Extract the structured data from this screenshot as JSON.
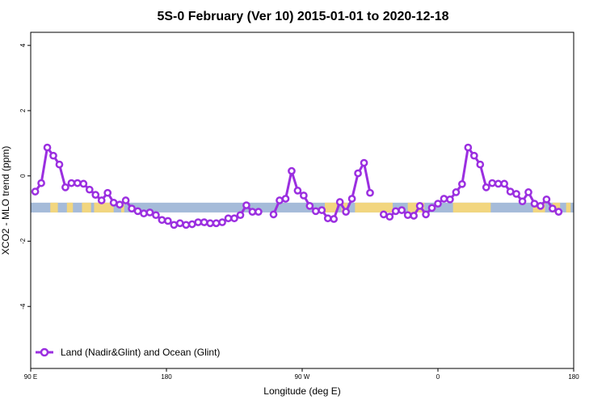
{
  "chart_data": {
    "type": "line",
    "title": "5S-0 February (Ver 10)   2015-01-01 to 2020-12-18",
    "xlabel": "Longitude (deg E)",
    "ylabel": "XCO2 - MLO trend (ppm)",
    "xlim": [
      90,
      450
    ],
    "ylim": [
      -5.9,
      4.4
    ],
    "x_ticks": [
      {
        "value": 90,
        "label": "90 E"
      },
      {
        "value": 180,
        "label": "180"
      },
      {
        "value": 270,
        "label": "90 W"
      },
      {
        "value": 360,
        "label": "0"
      },
      {
        "value": 450,
        "label": "180"
      }
    ],
    "y_ticks": [
      {
        "value": 4,
        "label": "4"
      },
      {
        "value": 2,
        "label": "2"
      },
      {
        "value": 0,
        "label": "0"
      },
      {
        "value": -2,
        "label": "-2"
      },
      {
        "value": -4,
        "label": "-4"
      }
    ],
    "grid": false,
    "legend": {
      "position": "bottom-left",
      "entries": [
        "Land (Nadir&Glint) and Ocean (Glint)"
      ]
    },
    "land_ocean_band": {
      "y_range": [
        -1.12,
        -0.82
      ],
      "ocean_color": "#a5bbd9",
      "land_color": "#f5d77a",
      "land_segments": [
        [
          103,
          108
        ],
        [
          114,
          118
        ],
        [
          124,
          130
        ],
        [
          132,
          145
        ],
        [
          150,
          152
        ],
        [
          285,
          293
        ],
        [
          296,
          300
        ],
        [
          305,
          330
        ],
        [
          340,
          351
        ],
        [
          370,
          395
        ],
        [
          423,
          431
        ],
        [
          436,
          441
        ],
        [
          445,
          448
        ]
      ]
    },
    "series": [
      {
        "name": "Land (Nadir&Glint) and Ocean (Glint)",
        "color": "#9b2fe0",
        "segments": [
          [
            [
              93,
              -0.48
            ],
            [
              97,
              -0.22
            ],
            [
              101,
              0.87
            ],
            [
              105,
              0.62
            ],
            [
              109,
              0.35
            ],
            [
              113,
              -0.35
            ],
            [
              117,
              -0.22
            ],
            [
              121,
              -0.22
            ],
            [
              125,
              -0.24
            ],
            [
              129,
              -0.42
            ],
            [
              133,
              -0.58
            ],
            [
              137,
              -0.75
            ],
            [
              141,
              -0.52
            ],
            [
              145,
              -0.82
            ],
            [
              149,
              -0.88
            ],
            [
              153,
              -0.75
            ],
            [
              157,
              -1.0
            ],
            [
              161,
              -1.08
            ],
            [
              165,
              -1.15
            ],
            [
              169,
              -1.12
            ],
            [
              173,
              -1.2
            ],
            [
              177,
              -1.35
            ],
            [
              181,
              -1.38
            ],
            [
              185,
              -1.5
            ],
            [
              189,
              -1.45
            ],
            [
              193,
              -1.5
            ],
            [
              197,
              -1.48
            ],
            [
              201,
              -1.42
            ],
            [
              205,
              -1.42
            ],
            [
              209,
              -1.45
            ],
            [
              213,
              -1.45
            ],
            [
              217,
              -1.42
            ],
            [
              221,
              -1.3
            ],
            [
              225,
              -1.3
            ],
            [
              229,
              -1.2
            ],
            [
              233,
              -0.9
            ],
            [
              237,
              -1.1
            ],
            [
              241,
              -1.1
            ]
          ],
          [
            [
              251,
              -1.18
            ],
            [
              255,
              -0.75
            ],
            [
              259,
              -0.7
            ],
            [
              263,
              0.15
            ],
            [
              267,
              -0.45
            ],
            [
              271,
              -0.6
            ],
            [
              275,
              -0.92
            ],
            [
              279,
              -1.08
            ],
            [
              283,
              -1.05
            ],
            [
              287,
              -1.3
            ],
            [
              291,
              -1.32
            ],
            [
              295,
              -0.8
            ],
            [
              299,
              -1.1
            ],
            [
              303,
              -0.7
            ],
            [
              307,
              0.08
            ],
            [
              311,
              0.4
            ],
            [
              315,
              -0.52
            ]
          ],
          [
            [
              324,
              -1.18
            ],
            [
              328,
              -1.25
            ],
            [
              332,
              -1.08
            ],
            [
              336,
              -1.05
            ],
            [
              340,
              -1.2
            ],
            [
              344,
              -1.22
            ],
            [
              348,
              -0.92
            ],
            [
              352,
              -1.18
            ],
            [
              356,
              -0.98
            ],
            [
              360,
              -0.85
            ],
            [
              364,
              -0.7
            ],
            [
              368,
              -0.72
            ],
            [
              372,
              -0.5
            ],
            [
              376,
              -0.25
            ],
            [
              380,
              0.87
            ],
            [
              384,
              0.62
            ],
            [
              388,
              0.35
            ],
            [
              392,
              -0.35
            ],
            [
              396,
              -0.22
            ],
            [
              400,
              -0.24
            ],
            [
              404,
              -0.24
            ],
            [
              408,
              -0.48
            ],
            [
              412,
              -0.55
            ],
            [
              416,
              -0.78
            ],
            [
              420,
              -0.5
            ],
            [
              424,
              -0.85
            ],
            [
              428,
              -0.92
            ],
            [
              432,
              -0.72
            ],
            [
              436,
              -1.0
            ],
            [
              440,
              -1.1
            ]
          ]
        ]
      }
    ]
  }
}
